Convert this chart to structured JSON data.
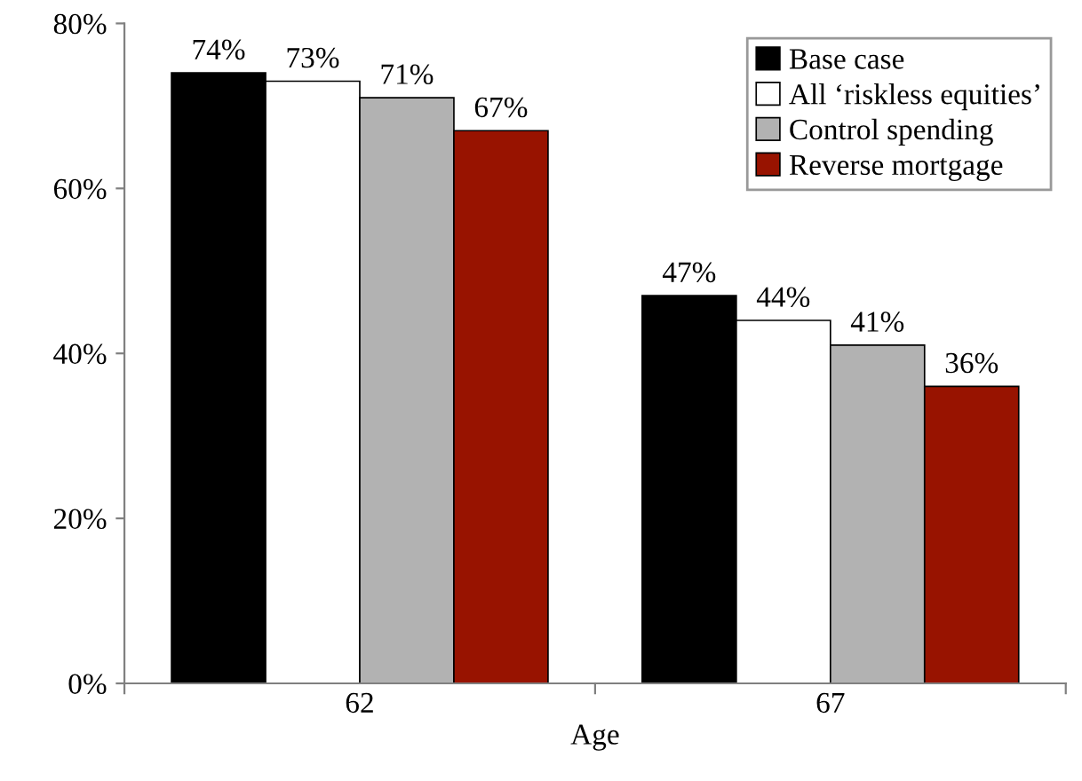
{
  "chart_data": {
    "type": "bar",
    "xlabel": "Age",
    "categories": [
      "62",
      "67"
    ],
    "series": [
      {
        "name": "Base case",
        "color": "#000000",
        "values": [
          74,
          47
        ],
        "value_labels": [
          "74%",
          "47%"
        ]
      },
      {
        "name": "All ‘riskless equities’",
        "color": "#ffffff",
        "values": [
          73,
          44
        ],
        "value_labels": [
          "73%",
          "44%"
        ]
      },
      {
        "name": "Control spending",
        "color": "#b2b2b2",
        "values": [
          71,
          41
        ],
        "value_labels": [
          "71%",
          "41%"
        ]
      },
      {
        "name": "Reverse mortgage",
        "color": "#981300",
        "values": [
          67,
          36
        ],
        "value_labels": [
          "67%",
          "36%"
        ]
      }
    ],
    "ylim": [
      0,
      80
    ],
    "yticks": [
      {
        "value": 0,
        "label": "0%"
      },
      {
        "value": 20,
        "label": "20%"
      },
      {
        "value": 40,
        "label": "40%"
      },
      {
        "value": 60,
        "label": "60%"
      },
      {
        "value": 80,
        "label": "80%"
      }
    ],
    "grid": false,
    "legend": "top right"
  }
}
